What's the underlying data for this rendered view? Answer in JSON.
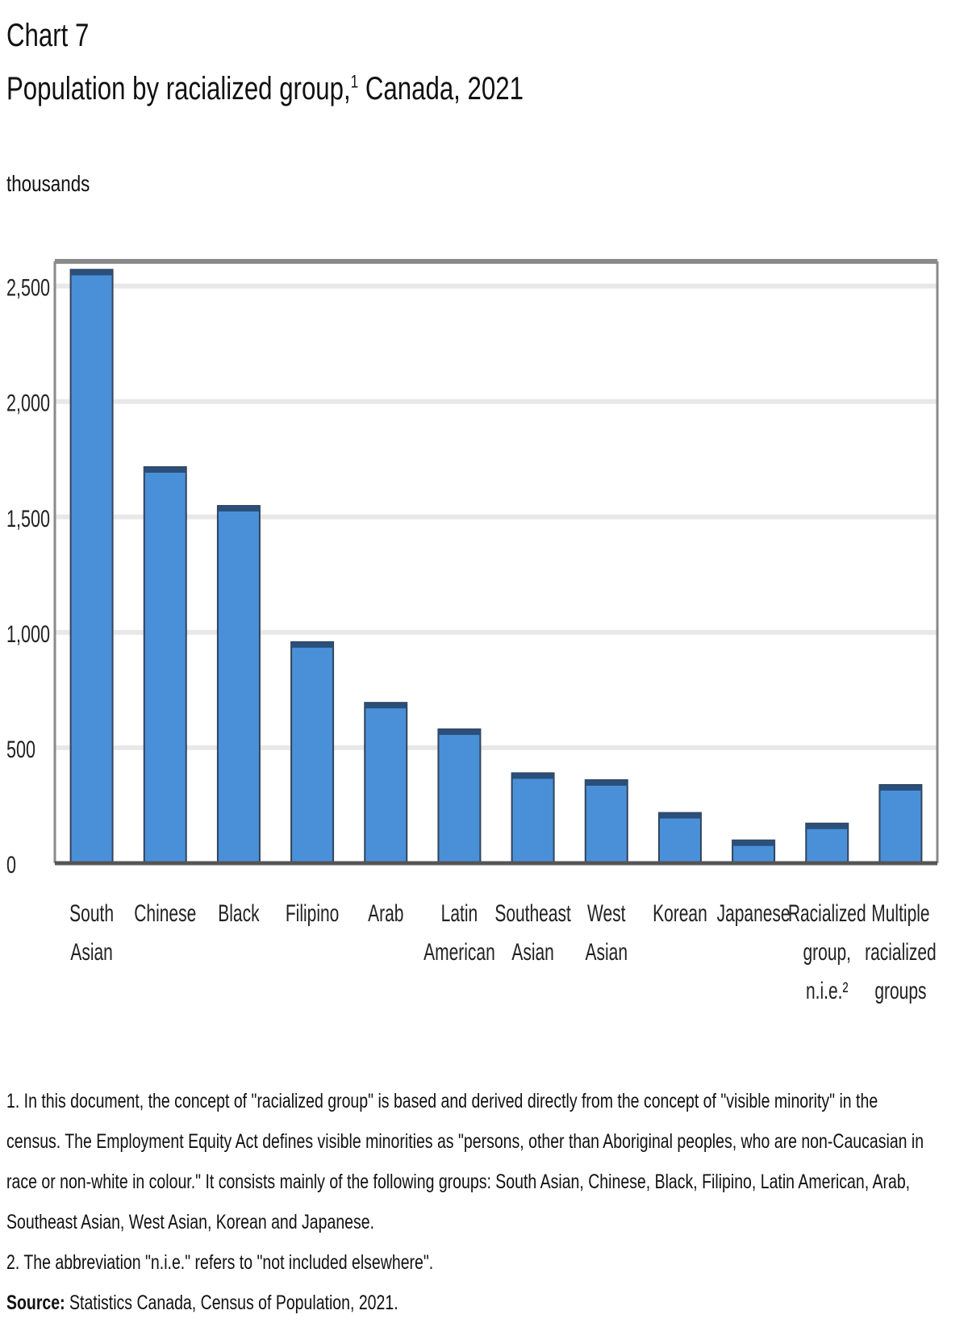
{
  "header": {
    "chart_number": "Chart 7",
    "title": "Population by racialized group,",
    "title_note": "1",
    "title_suffix": " Canada, 2021",
    "unit": "thousands"
  },
  "footnotes": {
    "note1": "1. In this document, the concept of \"racialized group\" is based and derived directly from the concept of \"visible minority\" in the census. The Employment Equity Act defines visible minorities as \"persons, other than Aboriginal peoples, who are non-Caucasian in race or non-white in colour.\" It consists mainly of the following groups: South Asian, Chinese, Black, Filipino, Latin American, Arab, Southeast Asian, West Asian, Korean and Japanese.",
    "note2": "2. The abbreviation \"n.i.e.\" refers to \"not included elsewhere\".",
    "source_label": "Source:",
    "source_text": " Statistics Canada, Census of Population, 2021."
  },
  "colors": {
    "bar_fill": "#4a90d9",
    "bar_top": "#2a4f7a",
    "bar_stroke": "#33435a",
    "gridline": "#e8e8e8",
    "frame": "#8a8a8a",
    "baseline": "#555555"
  },
  "chart_data": {
    "type": "bar",
    "categories": [
      [
        "South",
        "Asian"
      ],
      [
        "Chinese"
      ],
      [
        "Black"
      ],
      [
        "Filipino"
      ],
      [
        "Arab"
      ],
      [
        "Latin",
        "American"
      ],
      [
        "Southeast",
        "Asian"
      ],
      [
        "West",
        "Asian"
      ],
      [
        "Korean"
      ],
      [
        "Japanese"
      ],
      [
        "Racialized",
        "group,",
        "n.i.e.²"
      ],
      [
        "Multiple",
        "racialized",
        "groups"
      ]
    ],
    "values": [
      2571,
      1716,
      1548,
      958,
      695,
      580,
      390,
      360,
      218,
      99,
      172,
      339
    ],
    "ylabel": "thousands",
    "ylim": [
      0,
      2600
    ],
    "yticks": [
      0,
      500,
      1000,
      1500,
      2000,
      2500
    ],
    "ytick_labels": [
      "0",
      "500",
      "1,000",
      "1,500",
      "2,000",
      "2,500"
    ],
    "grid": true,
    "legend": "none"
  }
}
